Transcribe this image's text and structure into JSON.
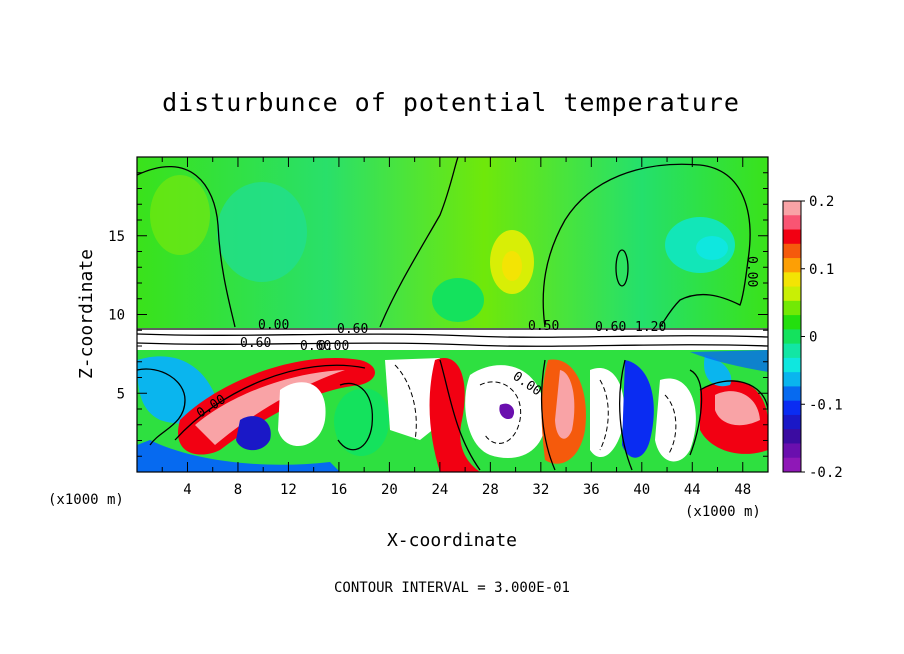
{
  "chart_data": {
    "type": "heatmap",
    "title": "disturbunce of potential temperature",
    "xlabel": "X-coordinate",
    "ylabel": "Z-coordinate",
    "x_unit_left": "(x1000 m)",
    "x_unit_right": "(x1000 m)",
    "xlim": [
      0,
      50
    ],
    "ylim": [
      0,
      20
    ],
    "x_ticks": [
      "4",
      "8",
      "12",
      "16",
      "20",
      "24",
      "28",
      "32",
      "36",
      "40",
      "44",
      "48"
    ],
    "y_ticks": [
      "5",
      "10",
      "15"
    ],
    "colorbar": {
      "range": [
        -0.2,
        0.2
      ],
      "tick_labels": [
        "0.2",
        "0.1",
        "0",
        "-0.1",
        "-0.2"
      ],
      "colors": [
        "#f9a3a6",
        "#f95573",
        "#f20012",
        "#f55a0c",
        "#fd9f05",
        "#f3e404",
        "#c9ef05",
        "#72e905",
        "#23df0e",
        "#14e25d",
        "#12e6a4",
        "#0fe7df",
        "#0ab5ee",
        "#066af0",
        "#0a2cf2",
        "#1a18c7",
        "#3b0ca1",
        "#6a0fae",
        "#8f18b7"
      ]
    },
    "contour_labels": [
      "0.00",
      "0.60",
      "0.60",
      "0.00",
      "0.60",
      "0.00",
      "0.50",
      "0.60",
      "1.20",
      "0.00",
      "0.00"
    ],
    "contour_note": "CONTOUR INTERVAL = 3.000E-01"
  }
}
